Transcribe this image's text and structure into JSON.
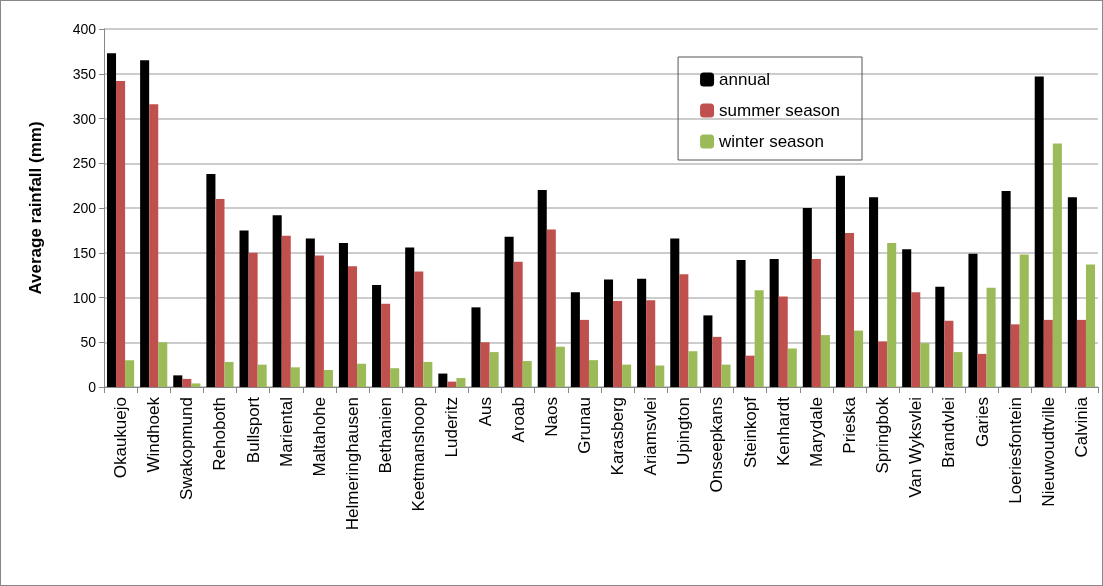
{
  "chart_data": {
    "type": "bar",
    "ylabel": "Average rainfall (mm)",
    "categories": [
      "Okaukuejo",
      "Windhoek",
      "Swakopmund",
      "Rehoboth",
      "Bullsport",
      "Mariental",
      "Maltahohe",
      "Helmeringhausen",
      "Bethanien",
      "Keetmanshoop",
      "Luderitz",
      "Aus",
      "Aroab",
      "Naos",
      "Grunau",
      "Karasberg",
      "Ariamsvlei",
      "Upington",
      "Onseepkans",
      "Steinkopf",
      "Kenhardt",
      "Marydale",
      "Prieska",
      "Springbok",
      "Van Wyksvlei",
      "Brandvlei",
      "Garies",
      "Loeriesfontein",
      "Nieuwoudtville",
      "Calvinia"
    ],
    "series": [
      {
        "name": "annual",
        "color": "#000000",
        "values": [
          373,
          365,
          13,
          238,
          175,
          192,
          166,
          161,
          114,
          156,
          15,
          89,
          168,
          220,
          106,
          120,
          121,
          166,
          80,
          142,
          143,
          200,
          236,
          212,
          154,
          112,
          149,
          219,
          347,
          212
        ]
      },
      {
        "name": "summer season",
        "color": "#c0504d",
        "values": [
          342,
          316,
          9,
          210,
          150,
          169,
          147,
          135,
          93,
          129,
          6,
          50,
          140,
          176,
          75,
          96,
          97,
          126,
          56,
          35,
          101,
          143,
          172,
          51,
          106,
          74,
          37,
          70,
          75,
          75
        ]
      },
      {
        "name": "winter season",
        "color": "#9bbb59",
        "values": [
          30,
          50,
          4,
          28,
          25,
          22,
          19,
          26,
          21,
          28,
          10,
          39,
          29,
          45,
          30,
          25,
          24,
          40,
          25,
          108,
          43,
          58,
          63,
          161,
          49,
          39,
          111,
          148,
          272,
          137
        ]
      }
    ],
    "ylim": [
      0,
      400
    ],
    "yticks": [
      0,
      50,
      100,
      150,
      200,
      250,
      300,
      350,
      400
    ],
    "grid": "y",
    "legend": "top right"
  }
}
